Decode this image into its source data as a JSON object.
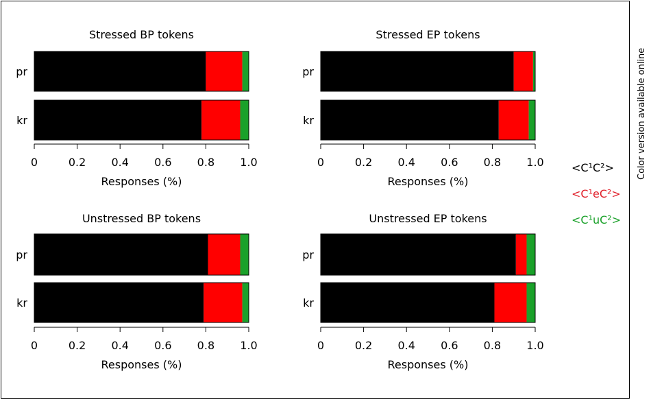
{
  "side_note": "Color version available online",
  "legend": [
    {
      "label": "<C¹C²>",
      "color": "#000000"
    },
    {
      "label": "<C¹eC²>",
      "color": "#e0202a"
    },
    {
      "label": "<C¹uC²>",
      "color": "#1aa12a"
    }
  ],
  "chart_data": [
    {
      "type": "bar",
      "orientation": "horizontal",
      "stacked": true,
      "title": "Stressed BP tokens",
      "xlabel": "Responses (%)",
      "xlim": [
        0,
        1.0
      ],
      "xticks": [
        "0",
        "0.2",
        "0.4",
        "0.6",
        "0.8",
        "1.0"
      ],
      "categories": [
        "pr",
        "kr"
      ],
      "series": [
        {
          "name": "<C¹C²>",
          "color": "#000000",
          "values": [
            0.8,
            0.78
          ]
        },
        {
          "name": "<C¹eC²>",
          "color": "#ff0000",
          "values": [
            0.17,
            0.18
          ]
        },
        {
          "name": "<C¹uC²>",
          "color": "#1aa12a",
          "values": [
            0.03,
            0.04
          ]
        }
      ]
    },
    {
      "type": "bar",
      "orientation": "horizontal",
      "stacked": true,
      "title": "Stressed EP tokens",
      "xlabel": "Responses (%)",
      "xlim": [
        0,
        1.0
      ],
      "xticks": [
        "0",
        "0.2",
        "0.4",
        "0.6",
        "0.8",
        "1.0"
      ],
      "categories": [
        "pr",
        "kr"
      ],
      "series": [
        {
          "name": "<C¹C²>",
          "color": "#000000",
          "values": [
            0.9,
            0.83
          ]
        },
        {
          "name": "<C¹eC²>",
          "color": "#ff0000",
          "values": [
            0.09,
            0.14
          ]
        },
        {
          "name": "<C¹uC²>",
          "color": "#1aa12a",
          "values": [
            0.01,
            0.03
          ]
        }
      ]
    },
    {
      "type": "bar",
      "orientation": "horizontal",
      "stacked": true,
      "title": "Unstressed BP tokens",
      "xlabel": "Responses (%)",
      "xlim": [
        0,
        1.0
      ],
      "xticks": [
        "0",
        "0.2",
        "0.4",
        "0.6",
        "0.8",
        "1.0"
      ],
      "categories": [
        "pr",
        "kr"
      ],
      "series": [
        {
          "name": "<C¹C²>",
          "color": "#000000",
          "values": [
            0.81,
            0.79
          ]
        },
        {
          "name": "<C¹eC²>",
          "color": "#ff0000",
          "values": [
            0.15,
            0.18
          ]
        },
        {
          "name": "<C¹uC²>",
          "color": "#1aa12a",
          "values": [
            0.04,
            0.03
          ]
        }
      ]
    },
    {
      "type": "bar",
      "orientation": "horizontal",
      "stacked": true,
      "title": "Unstressed EP tokens",
      "xlabel": "Responses (%)",
      "xlim": [
        0,
        1.0
      ],
      "xticks": [
        "0",
        "0.2",
        "0.4",
        "0.6",
        "0.8",
        "1.0"
      ],
      "categories": [
        "pr",
        "kr"
      ],
      "series": [
        {
          "name": "<C¹C²>",
          "color": "#000000",
          "values": [
            0.91,
            0.81
          ]
        },
        {
          "name": "<C¹eC²>",
          "color": "#ff0000",
          "values": [
            0.05,
            0.15
          ]
        },
        {
          "name": "<C¹uC²>",
          "color": "#1aa12a",
          "values": [
            0.04,
            0.04
          ]
        }
      ]
    }
  ]
}
